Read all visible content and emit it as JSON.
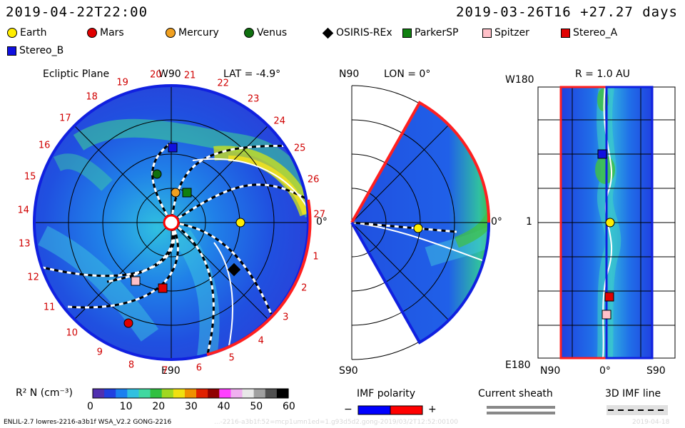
{
  "header": {
    "left_datetime": "2019-04-22T22:00",
    "right_datetime": "2019-03-26T16 +27.27 days"
  },
  "legend": [
    {
      "label": "Earth",
      "shape": "circle",
      "color": "#ffee00",
      "icon": "earth-icon"
    },
    {
      "label": "Mars",
      "shape": "circle",
      "color": "#e00000",
      "icon": "mars-icon"
    },
    {
      "label": "Mercury",
      "shape": "circle",
      "color": "#f0a020",
      "icon": "mercury-icon"
    },
    {
      "label": "Venus",
      "shape": "circle",
      "color": "#107010",
      "icon": "venus-icon"
    },
    {
      "label": "OSIRIS-REx",
      "shape": "diamond",
      "color": "#000000",
      "icon": "osiris-rex-icon"
    },
    {
      "label": "ParkerSP",
      "shape": "square",
      "color": "#108010",
      "icon": "parker-sp-icon"
    },
    {
      "label": "Spitzer",
      "shape": "square",
      "color": "#ffc0c8",
      "icon": "spitzer-icon"
    },
    {
      "label": "Stereo_A",
      "shape": "square",
      "color": "#e00000",
      "icon": "stereo-a-icon"
    },
    {
      "label": "Stereo_B",
      "shape": "square",
      "color": "#1010e0",
      "icon": "stereo-b-icon"
    }
  ],
  "panels": {
    "ecliptic": {
      "title": "Ecliptic Plane",
      "top_label": "W90",
      "lat_label": "LAT = -4.9°",
      "right_label": "0°",
      "bottom_label": "E90",
      "day_numbers": [
        "1",
        "2",
        "3",
        "4",
        "5",
        "6",
        "7",
        "8",
        "9",
        "10",
        "11",
        "12",
        "13",
        "14",
        "15",
        "16",
        "17",
        "18",
        "19",
        "20",
        "21",
        "22",
        "23",
        "24",
        "25",
        "26",
        "27"
      ]
    },
    "meridional": {
      "top_label": "N90",
      "lon_label": "LON = 0°",
      "right_label": "0°",
      "bottom_label": "S90"
    },
    "radial": {
      "title": "R = 1.0 AU",
      "top_left_label": "W180",
      "mid_left_label": "1",
      "bottom_left_label": "E180",
      "bottom_labels": [
        "N90",
        "0°",
        "S90"
      ]
    }
  },
  "colorbar": {
    "label": "R² N (cm⁻³)",
    "ticks": [
      "0",
      "10",
      "20",
      "30",
      "40",
      "50",
      "60"
    ],
    "colors": [
      "#5030b0",
      "#2040e0",
      "#1a80f0",
      "#30c0e0",
      "#40d8a0",
      "#30c040",
      "#a0d820",
      "#f0e010",
      "#f09000",
      "#e02000",
      "#900000",
      "#ff40ff",
      "#f0b0f0",
      "#e8e8e8",
      "#a0a0a0",
      "#505050",
      "#000000"
    ]
  },
  "imf_polarity": {
    "title": "IMF polarity",
    "minus": "−",
    "plus": "+",
    "neg_color": "#0000ff",
    "pos_color": "#ff0000"
  },
  "current_sheath": {
    "title": "Current sheath"
  },
  "imf_line": {
    "title": "3D IMF line"
  },
  "footer": {
    "model_info": "ENLIL-2.7 lowres-2216-a3b1f WSA_V2.2 GONG-2216",
    "faint_info": "...-2216-a3b1f:52=mcp1umn1ed=1.g93d5d2.gong-2019/03/2T12:52:00100",
    "date_stamp": "2019-04-18"
  }
}
